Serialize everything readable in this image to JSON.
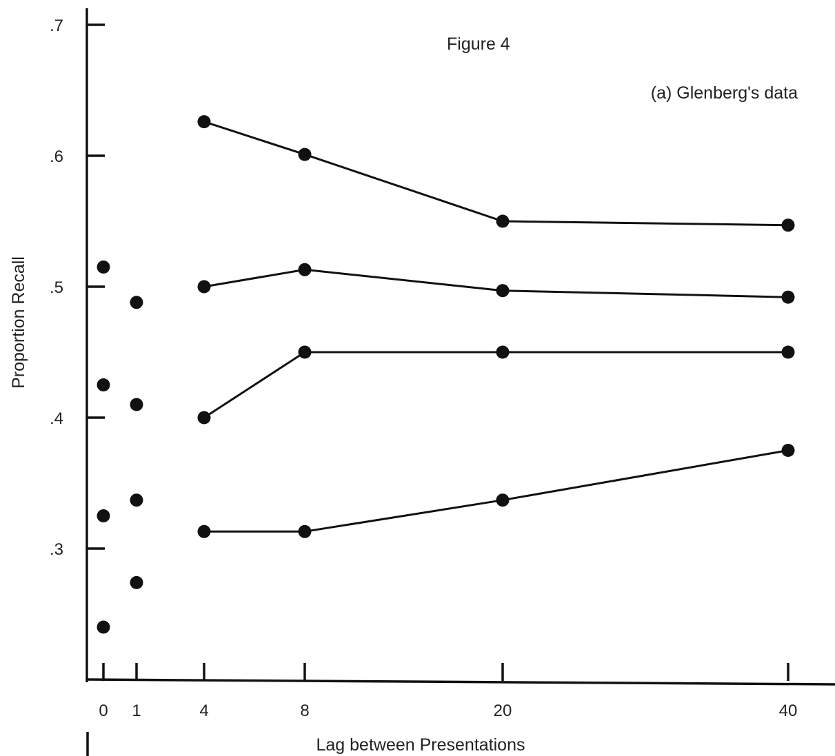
{
  "chart_data": {
    "type": "scatter",
    "title": "Figure 4",
    "subtitle": "(a) Glenberg's data",
    "xlabel": "Lag between Presentations",
    "ylabel": "Proportion Recall",
    "x_ticks": [
      {
        "label": "0",
        "value": 0
      },
      {
        "label": "1",
        "value": 1
      },
      {
        "label": "4",
        "value": 4
      },
      {
        "label": "8",
        "value": 8
      },
      {
        "label": "20",
        "value": 20
      },
      {
        "label": "40",
        "value": 40
      }
    ],
    "y_ticks": [
      {
        "label": ".3",
        "value": 0.3
      },
      {
        "label": ".4",
        "value": 0.4
      },
      {
        "label": ".5",
        "value": 0.5
      },
      {
        "label": ".6",
        "value": 0.6
      },
      {
        "label": ".7",
        "value": 0.7
      }
    ],
    "ylim": [
      0.19,
      0.71
    ],
    "grid": false,
    "legend": "none",
    "series": [
      {
        "x": [
          4,
          8,
          20,
          40
        ],
        "y": [
          0.626,
          0.601,
          0.55,
          0.547
        ]
      },
      {
        "x": [
          4,
          8,
          20,
          40
        ],
        "y": [
          0.5,
          0.513,
          0.497,
          0.492
        ]
      },
      {
        "x": [
          4,
          8,
          20,
          40
        ],
        "y": [
          0.4,
          0.45,
          0.45,
          0.45
        ]
      },
      {
        "x": [
          4,
          8,
          20,
          40
        ],
        "y": [
          0.313,
          0.313,
          0.337,
          0.375
        ]
      }
    ],
    "unconnected_points": [
      {
        "x": 0,
        "y": 0.515
      },
      {
        "x": 0,
        "y": 0.425
      },
      {
        "x": 0,
        "y": 0.325
      },
      {
        "x": 0,
        "y": 0.24
      },
      {
        "x": 1,
        "y": 0.488
      },
      {
        "x": 1,
        "y": 0.41
      },
      {
        "x": 1,
        "y": 0.337
      },
      {
        "x": 1,
        "y": 0.274
      }
    ]
  }
}
